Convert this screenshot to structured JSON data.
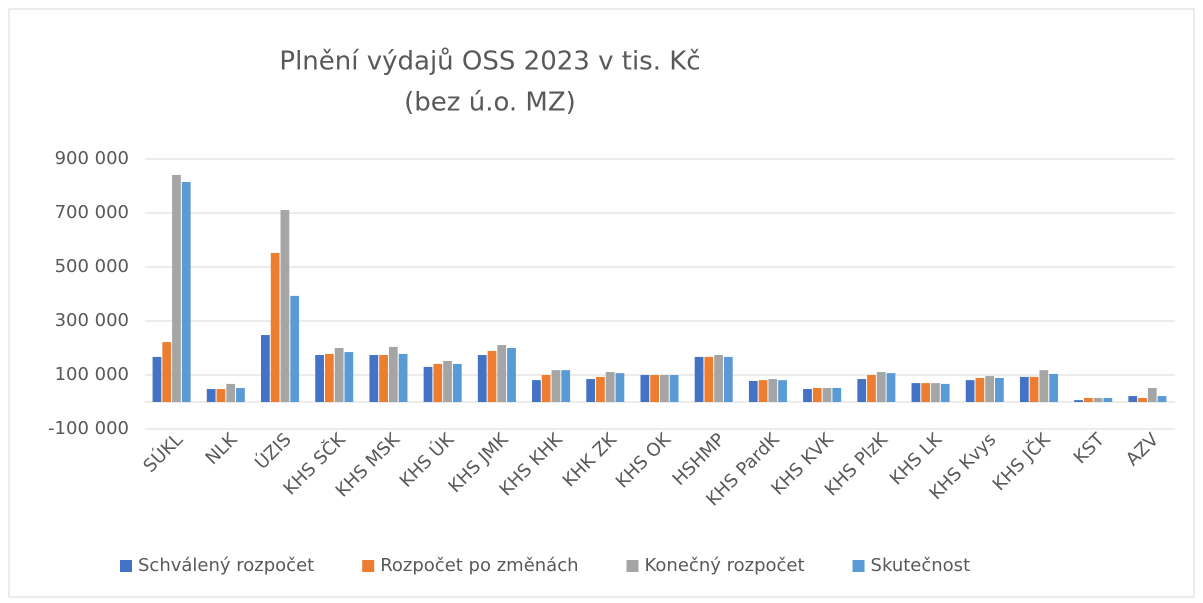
{
  "chart_data": {
    "type": "bar",
    "title": "Plnění výdajů OSS 2023 v tis. Kč",
    "subtitle": "(bez ú.o. MZ)",
    "categories": [
      "SÚKL",
      "NLK",
      "ÚZIS",
      "KHS SČK",
      "KHS MSK",
      "KHS ÚK",
      "KHS JMK",
      "KHS KHK",
      "KHK ZK",
      "KHS OK",
      "HSHMP",
      "KHS PardK",
      "KHS KVK",
      "KHS PlzK",
      "KHS LK",
      "KHS Kvys",
      "KHS JČK",
      "KST",
      "AZV"
    ],
    "series": [
      {
        "name": "Schválený rozpočet",
        "color": "#4472c4",
        "values": [
          167000,
          48000,
          248000,
          174000,
          174000,
          130000,
          174000,
          81000,
          85000,
          100000,
          167000,
          78000,
          48000,
          85000,
          70000,
          81000,
          93000,
          7000,
          22000
        ]
      },
      {
        "name": "Rozpočet po změnách",
        "color": "#ed7d31",
        "values": [
          222000,
          48000,
          552000,
          178000,
          174000,
          141000,
          189000,
          100000,
          93000,
          100000,
          167000,
          81000,
          52000,
          100000,
          70000,
          89000,
          93000,
          15000,
          15000
        ]
      },
      {
        "name": "Konečný rozpočet",
        "color": "#a5a5a5",
        "values": [
          841000,
          67000,
          711000,
          200000,
          204000,
          152000,
          211000,
          118000,
          111000,
          100000,
          174000,
          85000,
          52000,
          111000,
          70000,
          96000,
          118000,
          15000,
          52000
        ]
      },
      {
        "name": "Skutečnost",
        "color": "#5b9bd5",
        "values": [
          815000,
          52000,
          393000,
          185000,
          178000,
          141000,
          200000,
          118000,
          107000,
          100000,
          167000,
          81000,
          52000,
          107000,
          67000,
          89000,
          104000,
          15000,
          22000
        ]
      }
    ],
    "ylim": [
      -100000,
      900000
    ],
    "yticks": [
      {
        "value": -100000,
        "label": "-100 000"
      },
      {
        "value": 100000,
        "label": "100 000"
      },
      {
        "value": 300000,
        "label": "300 000"
      },
      {
        "value": 500000,
        "label": "500 000"
      },
      {
        "value": 700000,
        "label": "700 000"
      },
      {
        "value": 900000,
        "label": "900 000"
      }
    ],
    "grid": true,
    "legend": "bottom"
  }
}
